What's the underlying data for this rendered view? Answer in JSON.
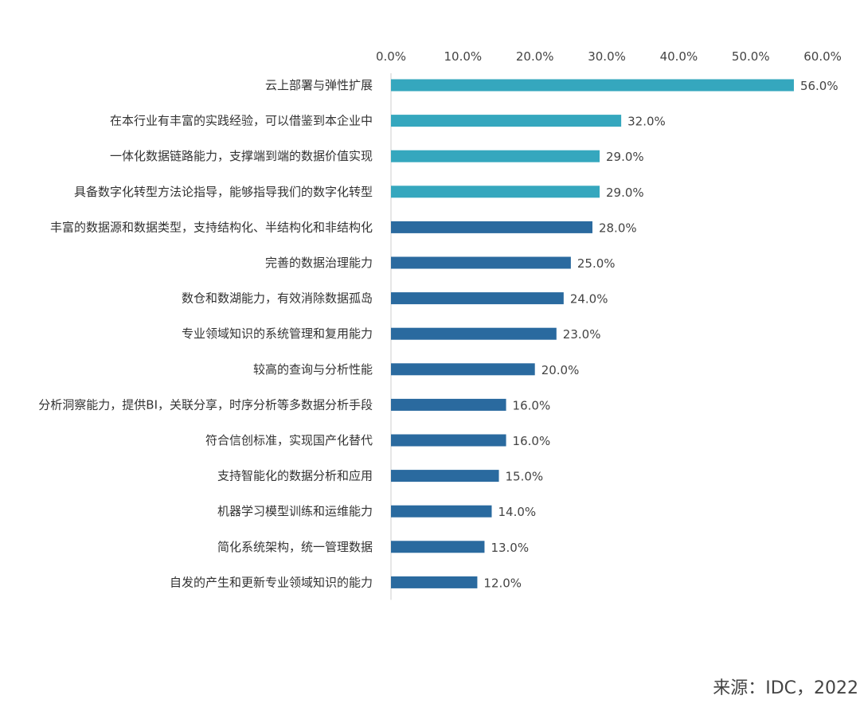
{
  "chart_data": {
    "type": "bar",
    "orientation": "horizontal",
    "categories": [
      "云上部署与弹性扩展",
      "在本行业有丰富的实践经验，可以借鉴到本企业中",
      "一体化数据链路能力，支撑端到端的数据价值实现",
      "具备数字化转型方法论指导，能够指导我们的数字化转型",
      "丰富的数据源和数据类型，支持结构化、半结构化和非结构化",
      "完善的数据治理能力",
      "数仓和数湖能力，有效消除数据孤岛",
      "专业领域知识的系统管理和复用能力",
      "较高的查询与分析性能",
      "分析洞察能力，提供BI，关联分享，时序分析等多数据分析手段",
      "符合信创标准，实现国产化替代",
      "支持智能化的数据分析和应用",
      "机器学习模型训练和运维能力",
      "简化系统架构，统一管理数据",
      "自发的产生和更新专业领域知识的能力"
    ],
    "values": [
      56.0,
      32.0,
      29.0,
      29.0,
      28.0,
      25.0,
      24.0,
      23.0,
      20.0,
      16.0,
      16.0,
      15.0,
      14.0,
      13.0,
      12.0
    ],
    "value_labels": [
      "56.0%",
      "32.0%",
      "29.0%",
      "29.0%",
      "28.0%",
      "25.0%",
      "24.0%",
      "23.0%",
      "20.0%",
      "16.0%",
      "16.0%",
      "15.0%",
      "14.0%",
      "13.0%",
      "12.0%"
    ],
    "xlim": [
      0,
      60
    ],
    "xticks": [
      0,
      10,
      20,
      30,
      40,
      50,
      60
    ],
    "xtick_labels": [
      "0.0%",
      "10.0%",
      "20.0%",
      "30.0%",
      "40.0%",
      "50.0%",
      "60.0%"
    ],
    "axis_position": "top",
    "grid": false,
    "colors": {
      "highlight": "#35A7BE",
      "default": "#2A6A9F",
      "axis": "#cccccc"
    },
    "highlight_count": 4
  },
  "source": "来源：IDC，2022"
}
